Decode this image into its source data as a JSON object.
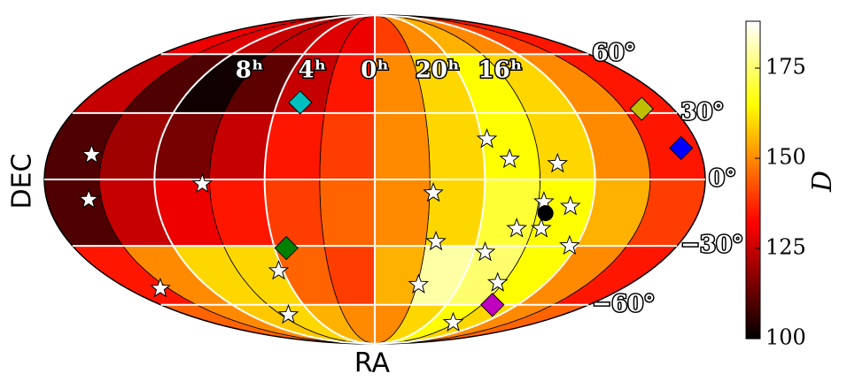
{
  "chart_data": {
    "type": "skymap",
    "projection": "mollweide",
    "x_label": "RA",
    "y_label": "DEC",
    "colorbar_label": "D",
    "colormap": "hot",
    "clim": [
      100,
      188
    ],
    "cticks": [
      100,
      125,
      150,
      175
    ],
    "xlim": [
      0,
      360
    ],
    "ylim": [
      -90,
      90
    ],
    "xticks": [
      {
        "value": 120,
        "label": "8ʰ"
      },
      {
        "value": 60,
        "label": "4ʰ"
      },
      {
        "value": 0,
        "label": "0ʰ"
      },
      {
        "value": 300,
        "label": "20ʰ"
      },
      {
        "value": 240,
        "label": "16ʰ"
      }
    ],
    "yticks": [
      {
        "value": 60,
        "label": "60°"
      },
      {
        "value": 30,
        "label": "30°"
      },
      {
        "value": 0,
        "label": "0°"
      },
      {
        "value": -30,
        "label": "−30°"
      },
      {
        "value": -60,
        "label": "−60°"
      }
    ],
    "grid": true,
    "ra_bins": [
      0,
      30,
      60,
      90,
      120,
      150,
      180,
      210,
      240,
      270,
      300,
      330,
      360
    ],
    "dec_bins": [
      -90,
      -60,
      -30,
      0,
      30,
      60,
      90
    ],
    "values": [
      [
        150,
        155,
        160,
        158,
        150,
        145,
        145,
        150,
        160,
        165,
        160,
        150
      ],
      [
        140,
        145,
        160,
        160,
        150,
        135,
        135,
        150,
        165,
        175,
        180,
        155
      ],
      [
        145,
        140,
        135,
        130,
        125,
        110,
        140,
        155,
        165,
        170,
        160,
        150
      ],
      [
        140,
        135,
        125,
        115,
        120,
        110,
        135,
        150,
        160,
        165,
        160,
        150
      ],
      [
        135,
        125,
        112,
        102,
        110,
        125,
        135,
        150,
        160,
        165,
        160,
        150
      ],
      [
        130,
        128,
        125,
        125,
        128,
        130,
        135,
        140,
        150,
        155,
        150,
        140
      ]
    ],
    "stars": {
      "ra": [
        156,
        157,
        94,
        328,
        297,
        286,
        260,
        267,
        252,
        279,
        265,
        324,
        244,
        293,
        63,
        156,
        329,
        274,
        83,
        273
      ],
      "dec": [
        11,
        -9,
        -2,
        -6,
        18,
        9,
        7,
        -10,
        -12,
        -22,
        -22,
        -28,
        -30,
        -33,
        -42,
        -51,
        -49,
        -48,
        -66,
        -71
      ],
      "color": "#ffffff"
    },
    "dot": {
      "ra": [
        265
      ],
      "dec": [
        -15
      ],
      "color": "#000000"
    },
    "diamonds": {
      "ra": [
        46,
        199,
        190,
        53,
        261
      ],
      "dec": [
        35,
        32,
        14,
        -31,
        -60
      ],
      "colors": [
        "#00bfbf",
        "#bfbf00",
        "#0000ff",
        "#008000",
        "#bf00bf"
      ]
    }
  }
}
